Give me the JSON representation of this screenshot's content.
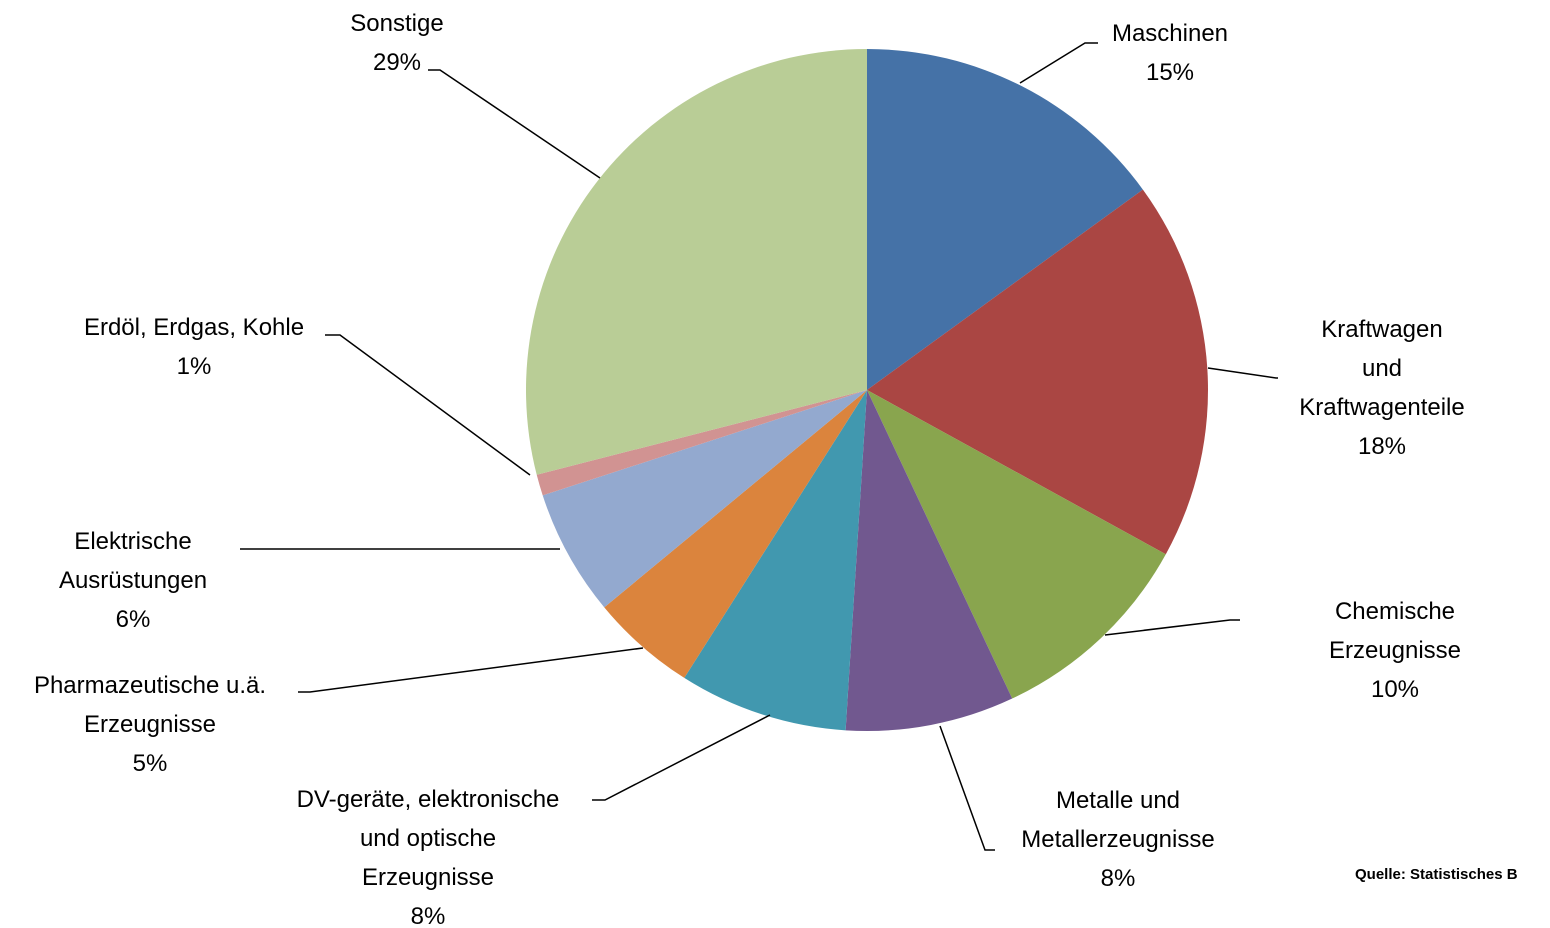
{
  "chart_data": {
    "type": "pie",
    "categories": [
      "Maschinen",
      "Kraftwagen und\nKraftwagenteile",
      "Chemische Erzeugnisse",
      "Metalle und\nMetallerzeugnisse",
      "DV-geräte, elektronische\nund optische\nErzeugnisse",
      "Pharmazeutische u.ä.\nErzeugnisse",
      "Elektrische\nAusrüstungen",
      "Erdöl, Erdgas, Kohle",
      "Sonstige"
    ],
    "values": [
      15,
      18,
      10,
      8,
      8,
      5,
      6,
      1,
      29
    ],
    "value_labels": [
      "15%",
      "18%",
      "10%",
      "8%",
      "8%",
      "5%",
      "6%",
      "1%",
      "29%"
    ],
    "colors": [
      "#4572a7",
      "#aa4643",
      "#89a54e",
      "#71588f",
      "#4198af",
      "#db843d",
      "#93a9cf",
      "#d19392",
      "#b9cd96"
    ],
    "source": "Quelle: Statistisches B"
  }
}
